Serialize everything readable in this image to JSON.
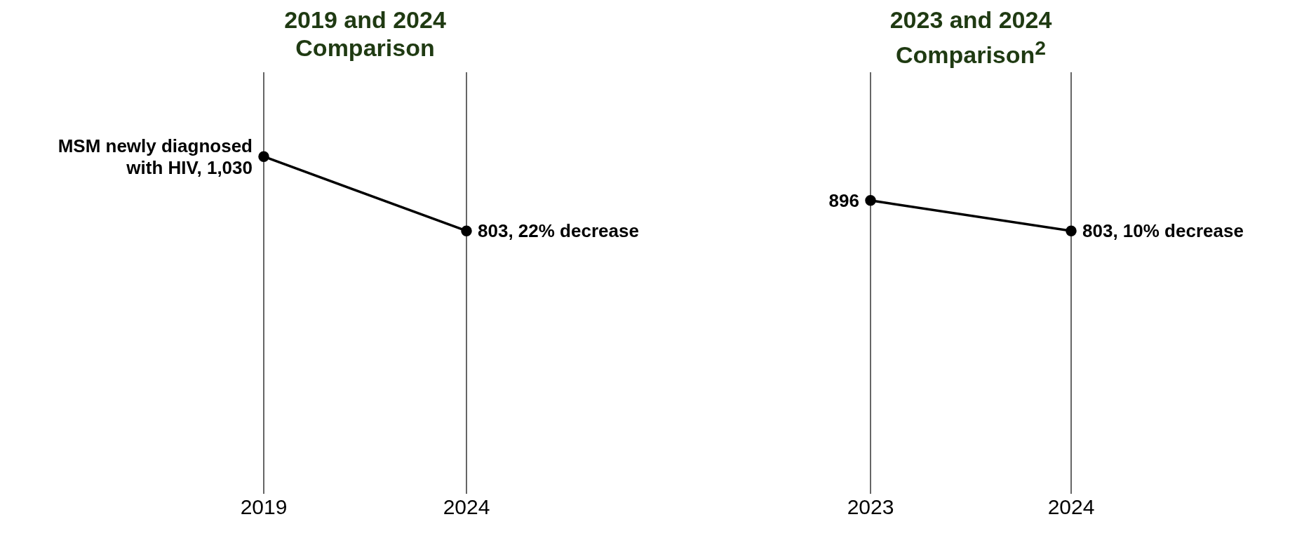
{
  "chart_data": [
    {
      "type": "line",
      "title": "2019 and 2024 Comparison",
      "categories": [
        "2019",
        "2024"
      ],
      "values": [
        1030,
        803
      ],
      "value_labels": [
        "MSM newly diagnosed with HIV, 1,030",
        "803, 22% decrease"
      ],
      "color": "#000000",
      "grid": "x",
      "marker": "circle"
    },
    {
      "type": "line",
      "title": "2023 and 2024 Comparison$^{2}$",
      "categories": [
        "2023",
        "2024"
      ],
      "values": [
        896,
        803
      ],
      "value_labels": [
        "896",
        "803, 10% decrease"
      ],
      "color": "#000000",
      "grid": "x",
      "marker": "circle"
    }
  ]
}
